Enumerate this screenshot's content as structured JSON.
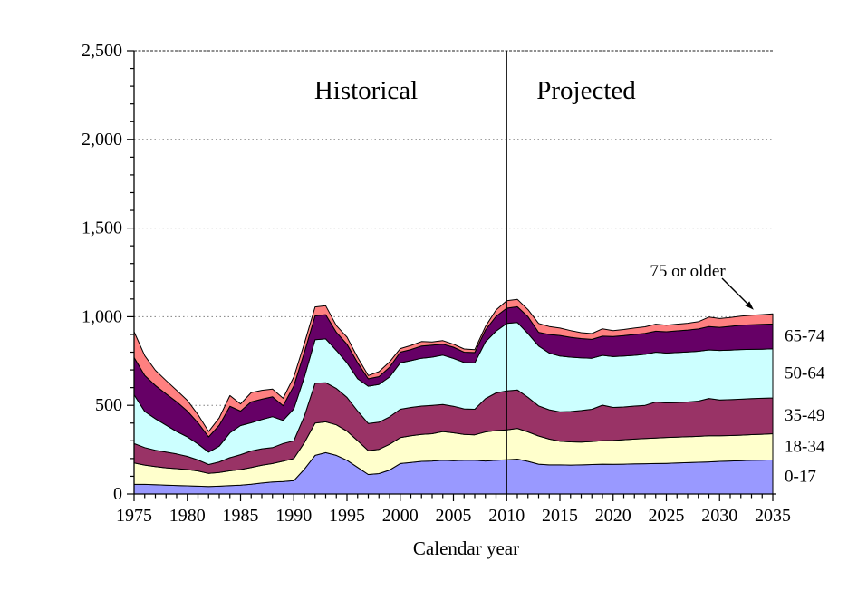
{
  "chart_data": {
    "type": "area",
    "stacked": true,
    "title": "",
    "xlabel": "Calendar year",
    "ylabel": "",
    "ylim": [
      0,
      2500
    ],
    "y_major_step": 500,
    "y_minor_step": 100,
    "x_range": [
      1975,
      2035
    ],
    "x_major_step": 5,
    "x_minor_step": 1,
    "grid": "horizontal dotted gridlines every 500",
    "legend_position": "band labels at right edge of plot",
    "divider_year": 2010,
    "region_labels": {
      "historical": "Historical",
      "projected": "Projected"
    },
    "callout": {
      "text": "75 or older"
    },
    "y_tick_labels": [
      "0",
      "500",
      "1,000",
      "1,500",
      "2,000",
      "2,500"
    ],
    "x_tick_labels": [
      "1975",
      "1980",
      "1985",
      "1990",
      "1995",
      "2000",
      "2005",
      "2010",
      "2015",
      "2020",
      "2025",
      "2030",
      "2035"
    ],
    "years": [
      1975,
      1976,
      1977,
      1978,
      1979,
      1980,
      1981,
      1982,
      1983,
      1984,
      1985,
      1986,
      1987,
      1988,
      1989,
      1990,
      1991,
      1992,
      1993,
      1994,
      1995,
      1996,
      1997,
      1998,
      1999,
      2000,
      2001,
      2002,
      2003,
      2004,
      2005,
      2006,
      2007,
      2008,
      2009,
      2010,
      2011,
      2012,
      2013,
      2014,
      2015,
      2016,
      2017,
      2018,
      2019,
      2020,
      2021,
      2022,
      2023,
      2024,
      2025,
      2026,
      2027,
      2028,
      2029,
      2030,
      2031,
      2032,
      2033,
      2034,
      2035
    ],
    "series": [
      {
        "name": "0-17",
        "color": "#9999FF",
        "values": [
          55,
          54,
          52,
          50,
          48,
          46,
          44,
          42,
          44,
          47,
          50,
          55,
          62,
          68,
          70,
          75,
          140,
          218,
          233,
          218,
          190,
          150,
          110,
          115,
          135,
          172,
          178,
          184,
          186,
          190,
          188,
          190,
          190,
          186,
          190,
          193,
          197,
          184,
          168,
          164,
          164,
          163,
          164,
          166,
          168,
          167,
          168,
          170,
          171,
          172,
          173,
          175,
          177,
          179,
          181,
          184,
          186,
          188,
          190,
          191,
          192
        ]
      },
      {
        "name": "18-34",
        "color": "#FFFFCC",
        "values": [
          120,
          109,
          103,
          98,
          95,
          92,
          86,
          74,
          77,
          84,
          88,
          95,
          100,
          104,
          115,
          125,
          150,
          182,
          174,
          172,
          165,
          150,
          135,
          137,
          145,
          146,
          150,
          152,
          154,
          162,
          157,
          146,
          144,
          164,
          168,
          169,
          173,
          166,
          159,
          146,
          134,
          131,
          129,
          130,
          133,
          135,
          138,
          140,
          142,
          144,
          146,
          146,
          146,
          146,
          147,
          144,
          144,
          144,
          145,
          146,
          148
        ]
      },
      {
        "name": "35-49",
        "color": "#993366",
        "values": [
          110,
          99,
          92,
          88,
          83,
          74,
          62,
          50,
          60,
          74,
          84,
          93,
          93,
          90,
          100,
          100,
          150,
          225,
          221,
          205,
          190,
          168,
          153,
          153,
          155,
          160,
          160,
          160,
          160,
          153,
          150,
          144,
          144,
          188,
          212,
          220,
          217,
          195,
          170,
          165,
          165,
          171,
          178,
          182,
          200,
          186,
          185,
          186,
          187,
          203,
          195,
          195,
          196,
          199,
          211,
          202,
          202,
          203,
          203,
          203,
          202
        ]
      },
      {
        "name": "50-64",
        "color": "#CCFFFF",
        "values": [
          275,
          203,
          178,
          152,
          126,
          110,
          90,
          70,
          89,
          140,
          164,
          159,
          165,
          174,
          130,
          180,
          220,
          245,
          247,
          215,
          195,
          182,
          210,
          213,
          225,
          262,
          264,
          270,
          272,
          278,
          270,
          262,
          262,
          320,
          348,
          380,
          381,
          360,
          338,
          320,
          315,
          307,
          297,
          288,
          281,
          287,
          287,
          286,
          288,
          281,
          281,
          282,
          282,
          281,
          274,
          280,
          280,
          280,
          278,
          277,
          277
        ]
      },
      {
        "name": "65-74",
        "color": "#660066",
        "values": [
          210,
          203,
          187,
          177,
          168,
          146,
          120,
          86,
          118,
          150,
          82,
          118,
          115,
          112,
          83,
          130,
          140,
          135,
          137,
          102,
          105,
          90,
          42,
          44,
          55,
          60,
          63,
          69,
          68,
          62,
          63,
          58,
          58,
          67,
          84,
          86,
          88,
          95,
          77,
          105,
          116,
          112,
          109,
          106,
          108,
          113,
          115,
          118,
          118,
          118,
          120,
          122,
          124,
          126,
          132,
          130,
          134,
          137,
          139,
          140,
          140
        ]
      },
      {
        "name": "75 or older",
        "color": "#FF8080",
        "values": [
          145,
          112,
          86,
          75,
          65,
          60,
          46,
          30,
          42,
          60,
          40,
          52,
          50,
          44,
          42,
          50,
          50,
          50,
          50,
          38,
          40,
          30,
          18,
          28,
          30,
          20,
          23,
          25,
          18,
          20,
          17,
          18,
          16,
          20,
          36,
          42,
          42,
          40,
          50,
          45,
          42,
          38,
          33,
          33,
          42,
          34,
          35,
          36,
          37,
          40,
          37,
          38,
          38,
          41,
          53,
          50,
          50,
          51,
          53,
          55,
          57
        ]
      }
    ],
    "styles": {
      "area_outline": "#000000",
      "gridline_color": "#808080",
      "axis_color": "#000000",
      "text_color": "#000000"
    }
  }
}
